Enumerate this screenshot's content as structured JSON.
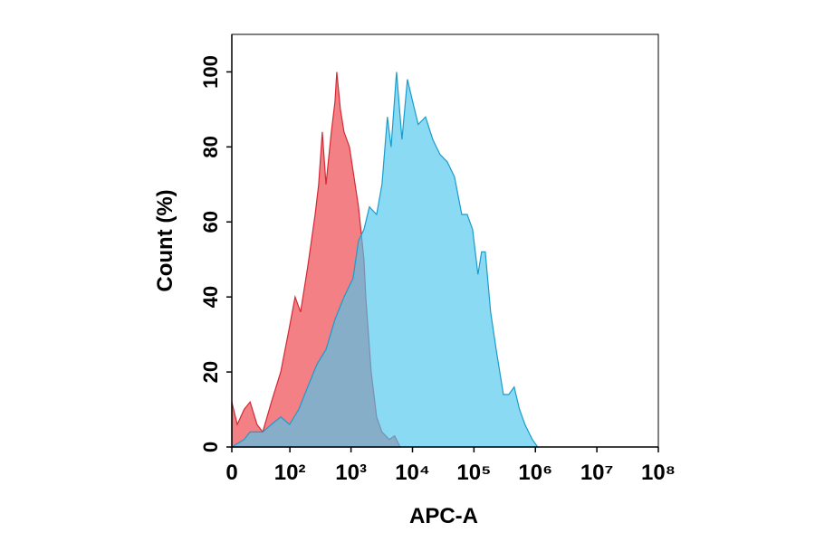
{
  "chart_data": {
    "type": "histogram-overlay",
    "x_label": "APC-A",
    "y_label": "Count  (%)",
    "xscale": "biexponential",
    "xlim": [
      0,
      100000000
    ],
    "xticks": [
      0,
      {
        "value": 100,
        "label": "10²"
      },
      {
        "value": 1000,
        "label": "10³"
      },
      {
        "value": 10000,
        "label": "10⁴"
      },
      {
        "value": 100000,
        "label": "10⁵"
      },
      {
        "value": 1000000,
        "label": "10⁶"
      },
      {
        "value": 10000000,
        "label": "10⁷"
      },
      {
        "value": 100000000,
        "label": "10⁸"
      }
    ],
    "ylim": [
      0,
      110
    ],
    "yticks": [
      0,
      20,
      40,
      60,
      80,
      100
    ],
    "series": [
      {
        "color": "#f06a6e",
        "stroke": "#d42a36",
        "x": [
          0,
          4.7,
          11,
          17,
          25,
          33,
          48,
          70,
          93,
          122,
          150,
          197,
          260,
          297,
          340,
          391,
          478,
          547,
          587,
          672,
          768,
          943,
          1324,
          1622,
          1736,
          2128,
          2605,
          3192,
          4190,
          5130,
          6300
        ],
        "values": [
          12,
          6,
          10,
          12,
          6,
          4,
          12,
          20,
          30,
          40,
          36,
          48,
          62,
          70,
          84,
          70,
          84,
          92,
          100,
          90,
          84,
          80,
          64,
          50,
          40,
          20,
          8,
          4,
          2,
          3,
          0
        ]
      },
      {
        "color": "#4cc6ee",
        "stroke": "#1a9ccc",
        "x": [
          0,
          11,
          17,
          33,
          48,
          70,
          99,
          140,
          197,
          278,
          391,
          547,
          768,
          1079,
          1324,
          1622,
          1989,
          2605,
          3192,
          3910,
          4490,
          5500,
          6740,
          8260,
          10100,
          12400,
          16300,
          21400,
          28000,
          36800,
          48200,
          63200,
          77500,
          95000,
          116000,
          133000,
          153000,
          187000,
          230000,
          301000,
          368000,
          451000,
          552000,
          676000,
          888000,
          1090000
        ],
        "values": [
          0,
          2,
          4,
          4,
          6,
          8,
          6,
          10,
          16,
          22,
          26,
          34,
          40,
          45,
          55,
          58,
          64,
          62,
          70,
          88,
          80,
          100,
          82,
          98,
          92,
          86,
          88,
          82,
          78,
          76,
          72,
          62,
          62,
          58,
          46,
          52,
          52,
          36,
          26,
          14,
          14,
          16,
          10,
          6,
          2,
          0
        ]
      }
    ]
  }
}
